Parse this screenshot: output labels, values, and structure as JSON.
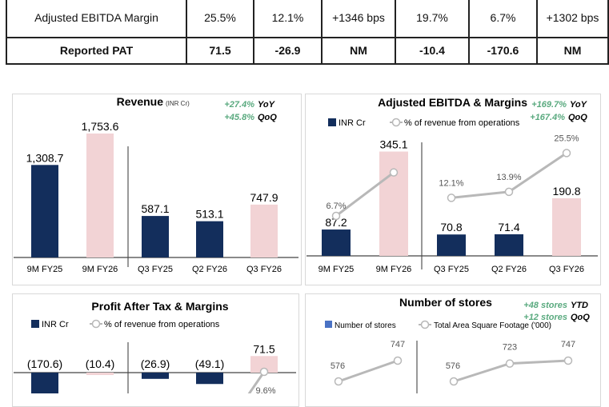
{
  "table": {
    "rows": [
      {
        "label": "Adjusted EBITDA Margin",
        "cells": [
          "25.5%",
          "12.1%",
          "+1346 bps",
          "19.7%",
          "6.7%",
          "+1302 bps"
        ]
      },
      {
        "label": "Reported PAT",
        "cells": [
          "71.5",
          "-26.9",
          "NM",
          "-10.4",
          "-170.6",
          "NM"
        ]
      }
    ]
  },
  "colors": {
    "navy": "#132e5c",
    "pink": "#f2d3d5",
    "green": "#5aaa7f",
    "line": "#b8b8b8",
    "store_blue": "#4a72c4"
  },
  "chart_data": [
    {
      "type": "bar",
      "title": "Revenue",
      "unit": "(INR Cr)",
      "growth": [
        {
          "value": "+27.4%",
          "label": "YoY"
        },
        {
          "value": "+45.8%",
          "label": "QoQ"
        }
      ],
      "categories": [
        "9M FY25",
        "9M FY26",
        "Q3 FY25",
        "Q2 FY26",
        "Q3 FY26"
      ],
      "values": [
        1308.7,
        1753.6,
        587.1,
        513.1,
        747.9
      ],
      "labels": [
        "1,308.7",
        "1,753.6",
        "587.1",
        "513.1",
        "747.9"
      ],
      "bar_colors": [
        "#132e5c",
        "#f2d3d5",
        "#132e5c",
        "#132e5c",
        "#f2d3d5"
      ]
    },
    {
      "type": "bar+line",
      "title": "Adjusted EBITDA & Margins",
      "growth": [
        {
          "value": "+169.7%",
          "label": "YoY"
        },
        {
          "value": "+167.4%",
          "label": "QoQ"
        }
      ],
      "legend": [
        "INR Cr",
        "% of revenue from operations"
      ],
      "categories": [
        "9M FY25",
        "9M FY26",
        "Q3 FY25",
        "Q2 FY26",
        "Q3 FY26"
      ],
      "values": [
        87.2,
        345.1,
        70.8,
        71.4,
        190.8
      ],
      "labels": [
        "87.2",
        "345.1",
        "70.8",
        "71.4",
        "190.8"
      ],
      "bar_colors": [
        "#132e5c",
        "#f2d3d5",
        "#132e5c",
        "#132e5c",
        "#f2d3d5"
      ],
      "margin_pct": [
        6.7,
        19.7,
        12.1,
        13.9,
        25.5
      ],
      "margin_labels": [
        "6.7%",
        null,
        "12.1%",
        "13.9%",
        "25.5%"
      ]
    },
    {
      "type": "bar+line",
      "title": "Profit After Tax & Margins",
      "legend": [
        "INR Cr",
        "% of revenue from operations"
      ],
      "values": [
        -170.6,
        -10.4,
        -26.9,
        -49.1,
        71.5
      ],
      "labels": [
        "(170.6)",
        "(10.4)",
        "(26.9)",
        "(49.1)",
        "71.5"
      ],
      "bar_colors": [
        "#132e5c",
        "#f2d3d5",
        "#132e5c",
        "#132e5c",
        "#f2d3d5"
      ],
      "margin_labels": [
        null,
        null,
        null,
        null,
        "9.6%"
      ]
    },
    {
      "type": "line",
      "title": "Number of stores",
      "growth": [
        {
          "value": "+48 stores",
          "label": "YTD"
        },
        {
          "value": "+12 stores",
          "label": "QoQ"
        }
      ],
      "legend": [
        "Number of stores",
        "Total Area Square Footage ('000)"
      ],
      "groups": [
        {
          "values": [
            576,
            747
          ],
          "labels": [
            "576",
            "747"
          ]
        },
        {
          "values": [
            576,
            723,
            747
          ],
          "labels": [
            "576",
            "723",
            "747"
          ]
        }
      ]
    }
  ]
}
